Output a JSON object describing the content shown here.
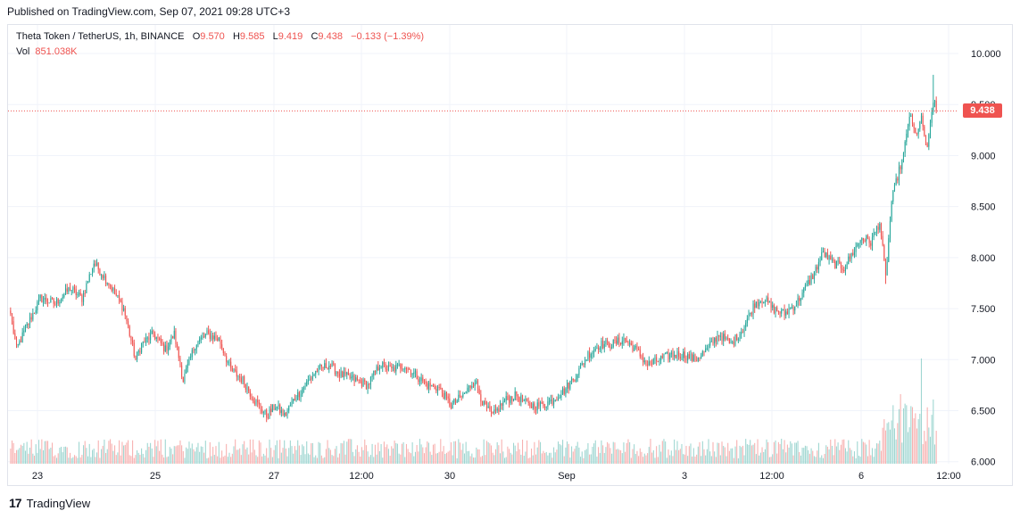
{
  "published_text": "Published on TradingView.com, Sep 07, 2021 09:28 UTC+3",
  "legend": {
    "symbol": "Theta Token / TetherUS, 1h, BINANCE",
    "o_label": "O",
    "o_value": "9.570",
    "h_label": "H",
    "h_value": "9.585",
    "l_label": "L",
    "l_value": "9.419",
    "c_label": "C",
    "c_value": "9.438",
    "change": "−0.133 (−1.39%)",
    "vol_label": "Vol",
    "vol_value": "851.038K"
  },
  "footer": {
    "logo": "17",
    "brand": "TradingView"
  },
  "colors": {
    "up": "#26a69a",
    "down": "#ef5350",
    "up_vol": "#9fd6d1",
    "down_vol": "#f7b1b0",
    "grid": "#f0f3fa"
  },
  "chart_data": {
    "type": "candlestick",
    "title": "Theta Token / TetherUS, 1h, BINANCE",
    "y_axis": {
      "ticks": [
        "10.000",
        "9.500",
        "9.000",
        "8.500",
        "8.000",
        "7.500",
        "7.000",
        "6.500",
        "6.000"
      ],
      "ylim": [
        5.98,
        10.28
      ],
      "position": "right"
    },
    "x_axis": {
      "ticks": [
        "23",
        "25",
        "27",
        "12:00",
        "30",
        "Sep",
        "3",
        "12:00",
        "6",
        "12:00"
      ]
    },
    "last_price": "9.438",
    "close_path": [
      [
        0,
        7.45
      ],
      [
        4,
        7.1
      ],
      [
        10,
        7.3
      ],
      [
        20,
        7.6
      ],
      [
        30,
        7.55
      ],
      [
        40,
        7.7
      ],
      [
        48,
        7.6
      ],
      [
        56,
        7.95
      ],
      [
        66,
        7.75
      ],
      [
        76,
        7.5
      ],
      [
        84,
        7.0
      ],
      [
        88,
        7.15
      ],
      [
        96,
        7.25
      ],
      [
        104,
        7.1
      ],
      [
        110,
        7.25
      ],
      [
        116,
        6.8
      ],
      [
        124,
        7.15
      ],
      [
        132,
        7.25
      ],
      [
        140,
        7.2
      ],
      [
        148,
        6.9
      ],
      [
        156,
        6.8
      ],
      [
        164,
        6.6
      ],
      [
        172,
        6.45
      ],
      [
        178,
        6.55
      ],
      [
        184,
        6.45
      ],
      [
        190,
        6.6
      ],
      [
        198,
        6.75
      ],
      [
        206,
        6.9
      ],
      [
        214,
        6.95
      ],
      [
        222,
        6.85
      ],
      [
        232,
        6.8
      ],
      [
        240,
        6.75
      ],
      [
        248,
        6.95
      ],
      [
        256,
        6.9
      ],
      [
        264,
        6.95
      ],
      [
        272,
        6.85
      ],
      [
        280,
        6.75
      ],
      [
        288,
        6.72
      ],
      [
        296,
        6.55
      ],
      [
        304,
        6.65
      ],
      [
        312,
        6.8
      ],
      [
        318,
        6.55
      ],
      [
        324,
        6.45
      ],
      [
        332,
        6.6
      ],
      [
        340,
        6.65
      ],
      [
        348,
        6.55
      ],
      [
        356,
        6.55
      ],
      [
        364,
        6.6
      ],
      [
        372,
        6.7
      ],
      [
        380,
        6.85
      ],
      [
        388,
        7.05
      ],
      [
        396,
        7.15
      ],
      [
        404,
        7.15
      ],
      [
        412,
        7.2
      ],
      [
        420,
        7.1
      ],
      [
        428,
        6.95
      ],
      [
        436,
        7.0
      ],
      [
        444,
        7.05
      ],
      [
        452,
        7.05
      ],
      [
        460,
        7.0
      ],
      [
        468,
        7.1
      ],
      [
        476,
        7.25
      ],
      [
        484,
        7.15
      ],
      [
        492,
        7.3
      ],
      [
        500,
        7.55
      ],
      [
        506,
        7.6
      ],
      [
        512,
        7.5
      ],
      [
        520,
        7.45
      ],
      [
        528,
        7.55
      ],
      [
        534,
        7.7
      ],
      [
        540,
        7.85
      ],
      [
        546,
        8.05
      ],
      [
        552,
        7.95
      ],
      [
        560,
        7.9
      ],
      [
        566,
        8.05
      ],
      [
        572,
        8.2
      ],
      [
        578,
        8.15
      ],
      [
        584,
        8.35
      ],
      [
        588,
        7.8
      ],
      [
        592,
        8.55
      ],
      [
        596,
        8.8
      ],
      [
        600,
        9.0
      ],
      [
        604,
        9.4
      ],
      [
        608,
        9.2
      ],
      [
        612,
        9.35
      ],
      [
        616,
        9.05
      ],
      [
        620,
        9.55
      ],
      [
        622,
        9.44
      ]
    ],
    "volume_ylim": [
      0,
      1000000
    ]
  }
}
